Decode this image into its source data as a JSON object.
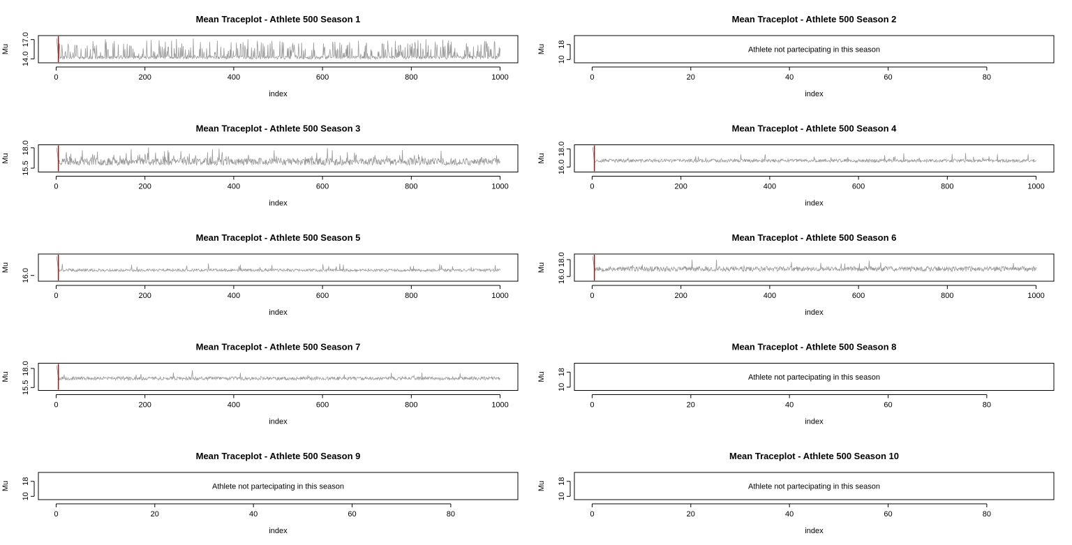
{
  "colors": {
    "trace": "#999999",
    "burnin": "#cc0000",
    "frame": "#000000"
  },
  "chart_data": [
    {
      "type": "line",
      "title": "Mean Traceplot - Athlete  500 Season  1",
      "xlabel": "index",
      "ylabel": "Mu",
      "participating": true,
      "xlim": [
        0,
        1000
      ],
      "ylim": [
        13.6,
        17.4
      ],
      "x_ticks": [
        "0",
        "200",
        "400",
        "600",
        "800",
        "1000"
      ],
      "y_ticks": [
        "14.0",
        "17.0"
      ],
      "series": [
        {
          "base": 14.2,
          "noise": 0.25,
          "spike_prob": 0.32,
          "spike_max": 2.8,
          "start": 17.2,
          "seed": 11
        }
      ],
      "burnin_marker": 5
    },
    {
      "type": "line",
      "title": "Mean Traceplot - Athlete  500 Season  2",
      "xlabel": "index",
      "ylabel": "Mu",
      "participating": false,
      "xlim": [
        0,
        90
      ],
      "ylim": [
        9,
        22
      ],
      "x_ticks": [
        "0",
        "20",
        "40",
        "60",
        "80"
      ],
      "y_ticks": [
        "10",
        "18"
      ],
      "message": "Athlete not partecipating in this season"
    },
    {
      "type": "line",
      "title": "Mean Traceplot - Athlete  500 Season  3",
      "xlabel": "index",
      "ylabel": "Mu",
      "participating": true,
      "xlim": [
        0,
        1000
      ],
      "ylim": [
        15.2,
        18.2
      ],
      "x_ticks": [
        "0",
        "200",
        "400",
        "600",
        "800",
        "1000"
      ],
      "y_ticks": [
        "15.5",
        "18.0"
      ],
      "series": [
        {
          "base": 16.3,
          "noise": 0.45,
          "spike_prob": 0.12,
          "spike_max": 1.4,
          "start": 18.0,
          "seed": 23
        }
      ],
      "burnin_marker": 5
    },
    {
      "type": "line",
      "title": "Mean Traceplot - Athlete  500 Season  4",
      "xlabel": "index",
      "ylabel": "Mu",
      "participating": true,
      "xlim": [
        0,
        1000
      ],
      "ylim": [
        15.6,
        18.3
      ],
      "x_ticks": [
        "0",
        "200",
        "400",
        "600",
        "800",
        "1000"
      ],
      "y_ticks": [
        "16.0",
        "18.0"
      ],
      "series": [
        {
          "base": 16.7,
          "noise": 0.18,
          "spike_prob": 0.03,
          "spike_max": 0.9,
          "start": 18.2,
          "seed": 37
        }
      ],
      "burnin_marker": 5
    },
    {
      "type": "line",
      "title": "Mean Traceplot - Athlete  500 Season  5",
      "xlabel": "index",
      "ylabel": "Mu",
      "participating": true,
      "xlim": [
        0,
        1000
      ],
      "ylim": [
        15.5,
        18.3
      ],
      "x_ticks": [
        "0",
        "200",
        "400",
        "600",
        "800",
        "1000"
      ],
      "y_ticks": [
        "16.0"
      ],
      "series": [
        {
          "base": 16.6,
          "noise": 0.15,
          "spike_prob": 0.025,
          "spike_max": 0.8,
          "start": 18.2,
          "seed": 41
        }
      ],
      "burnin_marker": 5
    },
    {
      "type": "line",
      "title": "Mean Traceplot - Athlete  500 Season  6",
      "xlabel": "index",
      "ylabel": "Mu",
      "participating": true,
      "xlim": [
        0,
        1000
      ],
      "ylim": [
        15.6,
        18.5
      ],
      "x_ticks": [
        "0",
        "200",
        "400",
        "600",
        "800",
        "1000"
      ],
      "y_ticks": [
        "16.0",
        "18.0"
      ],
      "series": [
        {
          "base": 16.9,
          "noise": 0.3,
          "spike_prob": 0.03,
          "spike_max": 0.9,
          "start": 18.4,
          "seed": 53
        }
      ],
      "burnin_marker": 5
    },
    {
      "type": "line",
      "title": "Mean Traceplot - Athlete  500 Season  7",
      "xlabel": "index",
      "ylabel": "Mu",
      "participating": true,
      "xlim": [
        0,
        1000
      ],
      "ylim": [
        15.3,
        18.5
      ],
      "x_ticks": [
        "0",
        "200",
        "400",
        "600",
        "800",
        "1000"
      ],
      "y_ticks": [
        "15.5",
        "18.0"
      ],
      "series": [
        {
          "base": 16.7,
          "noise": 0.22,
          "spike_prob": 0.02,
          "spike_max": 0.9,
          "start": 18.4,
          "seed": 67
        }
      ],
      "burnin_marker": 5
    },
    {
      "type": "line",
      "title": "Mean Traceplot - Athlete  500 Season  8",
      "xlabel": "index",
      "ylabel": "Mu",
      "participating": false,
      "xlim": [
        0,
        90
      ],
      "ylim": [
        9,
        22
      ],
      "x_ticks": [
        "0",
        "20",
        "40",
        "60",
        "80"
      ],
      "y_ticks": [
        "10",
        "18"
      ],
      "message": "Athlete not partecipating in this season"
    },
    {
      "type": "line",
      "title": "Mean Traceplot - Athlete  500 Season  9",
      "xlabel": "index",
      "ylabel": "Mu",
      "participating": false,
      "xlim": [
        0,
        90
      ],
      "ylim": [
        9,
        22
      ],
      "x_ticks": [
        "0",
        "20",
        "40",
        "60",
        "80"
      ],
      "y_ticks": [
        "10",
        "18"
      ],
      "message": "Athlete not partecipating in this season"
    },
    {
      "type": "line",
      "title": "Mean Traceplot - Athlete  500 Season  10",
      "xlabel": "index",
      "ylabel": "Mu",
      "participating": false,
      "xlim": [
        0,
        90
      ],
      "ylim": [
        9,
        22
      ],
      "x_ticks": [
        "0",
        "20",
        "40",
        "60",
        "80"
      ],
      "y_ticks": [
        "10",
        "18"
      ],
      "message": "Athlete not partecipating in this season"
    }
  ]
}
